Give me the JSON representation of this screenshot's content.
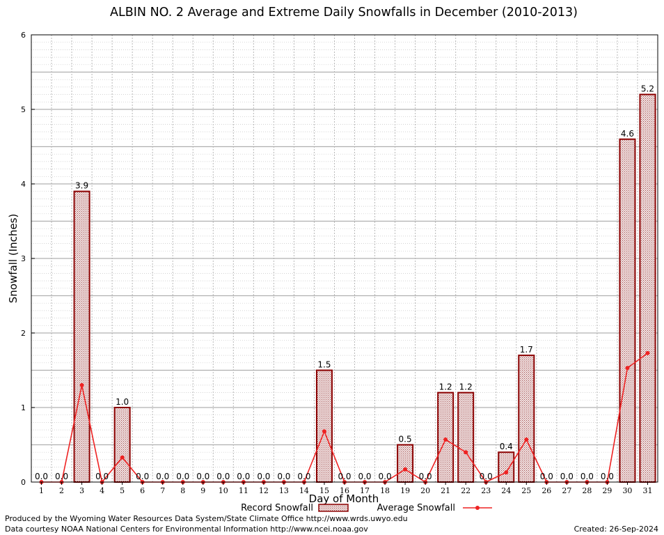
{
  "chart_data": {
    "type": "bar",
    "title": "ALBIN NO. 2 Average and Extreme Daily Snowfalls in December (2010-2013)",
    "xlabel": "Day of Month",
    "ylabel": "Snowfall (Inches)",
    "ylim": [
      0,
      6
    ],
    "yticks": [
      "0",
      "1",
      "2",
      "3",
      "4",
      "5",
      "6"
    ],
    "categories": [
      "1",
      "2",
      "3",
      "4",
      "5",
      "6",
      "7",
      "8",
      "9",
      "10",
      "11",
      "12",
      "13",
      "14",
      "15",
      "16",
      "17",
      "18",
      "19",
      "20",
      "21",
      "22",
      "23",
      "24",
      "25",
      "26",
      "27",
      "28",
      "29",
      "30",
      "31"
    ],
    "grid": true,
    "legend_position": "bottom",
    "series": [
      {
        "name": "Record Snowfall",
        "kind": "bar",
        "color": "#8b0000",
        "values": [
          0.0,
          0.0,
          3.9,
          0.0,
          1.0,
          0.0,
          0.0,
          0.0,
          0.0,
          0.0,
          0.0,
          0.0,
          0.0,
          0.0,
          1.5,
          0.0,
          0.0,
          0.0,
          0.5,
          0.0,
          1.2,
          1.2,
          0.0,
          0.4,
          1.7,
          0.0,
          0.0,
          0.0,
          0.0,
          4.6,
          5.2
        ],
        "labels": [
          "0.0",
          "0.0",
          "3.9",
          "0.0",
          "1.0",
          "0.0",
          "0.0",
          "0.0",
          "0.0",
          "0.0",
          "0.0",
          "0.0",
          "0.0",
          "0.0",
          "1.5",
          "0.0",
          "0.0",
          "0.0",
          "0.5",
          "0.0",
          "1.2",
          "1.2",
          "0.0",
          "0.4",
          "1.7",
          "0.0",
          "0.0",
          "0.0",
          "0.0",
          "4.6",
          "5.2"
        ]
      },
      {
        "name": "Average Snowfall",
        "kind": "line",
        "color": "#ee2222",
        "values": [
          0.0,
          0.0,
          1.3,
          0.0,
          0.33,
          0.0,
          0.0,
          0.0,
          0.0,
          0.0,
          0.0,
          0.0,
          0.0,
          0.0,
          0.68,
          0.0,
          0.0,
          0.0,
          0.17,
          0.0,
          0.57,
          0.4,
          0.0,
          0.13,
          0.57,
          0.0,
          0.0,
          0.0,
          0.0,
          1.53,
          1.73
        ]
      }
    ]
  },
  "footer": {
    "produced_by": "Produced by the Wyoming Water Resources Data System/State Climate Office http://www.wrds.uwyo.edu",
    "courtesy": "Data courtesy NOAA National Centers for Environmental Information http://www.ncei.noaa.gov",
    "created": "Created:  26-Sep-2024"
  }
}
